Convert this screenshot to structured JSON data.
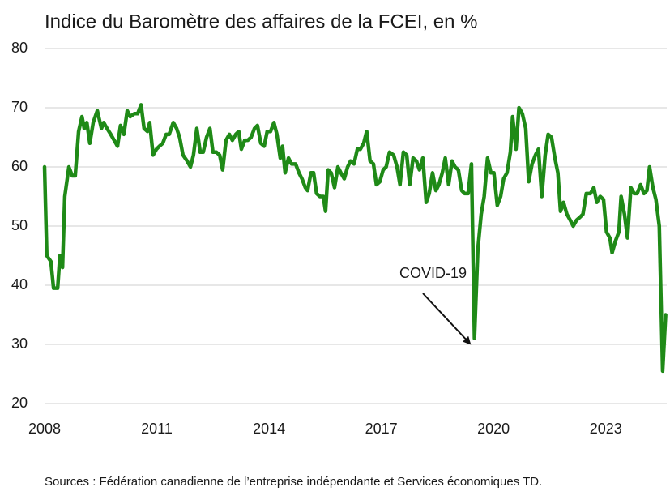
{
  "chart_data": {
    "type": "line",
    "title": "Indice du Baromètre des affaires de la FCEI, en %",
    "source": "Sources : Fédération canadienne de l’entreprise indépendante et Services économiques TD.",
    "annotation": "COVID-19",
    "x": [
      2008.0,
      2008.06,
      2008.17,
      2008.24,
      2008.35,
      2008.41,
      2008.48,
      2008.54,
      2008.65,
      2008.74,
      2008.82,
      2008.91,
      2009.0,
      2009.06,
      2009.13,
      2009.21,
      2009.3,
      2009.41,
      2009.52,
      2009.58,
      2009.67,
      2009.77,
      2009.86,
      2009.95,
      2010.03,
      2010.12,
      2010.21,
      2010.29,
      2010.4,
      2010.49,
      2010.58,
      2010.66,
      2010.75,
      2010.81,
      2010.9,
      2010.99,
      2011.07,
      2011.16,
      2011.25,
      2011.33,
      2011.44,
      2011.53,
      2011.61,
      2011.7,
      2011.81,
      2011.9,
      2011.98,
      2012.07,
      2012.16,
      2012.24,
      2012.33,
      2012.42,
      2012.5,
      2012.59,
      2012.68,
      2012.76,
      2012.85,
      2012.94,
      2013.02,
      2013.11,
      2013.19,
      2013.26,
      2013.35,
      2013.43,
      2013.52,
      2013.61,
      2013.69,
      2013.78,
      2013.87,
      2013.95,
      2014.04,
      2014.13,
      2014.21,
      2014.3,
      2014.36,
      2014.43,
      2014.52,
      2014.6,
      2014.71,
      2014.8,
      2014.88,
      2014.97,
      2015.03,
      2015.12,
      2015.19,
      2015.27,
      2015.36,
      2015.45,
      2015.51,
      2015.58,
      2015.66,
      2015.75,
      2015.84,
      2015.92,
      2016.01,
      2016.1,
      2016.18,
      2016.27,
      2016.36,
      2016.44,
      2016.53,
      2016.61,
      2016.7,
      2016.79,
      2016.87,
      2016.96,
      2017.05,
      2017.13,
      2017.22,
      2017.33,
      2017.42,
      2017.5,
      2017.59,
      2017.68,
      2017.76,
      2017.85,
      2017.94,
      2018.02,
      2018.11,
      2018.2,
      2018.28,
      2018.37,
      2018.46,
      2018.54,
      2018.63,
      2018.71,
      2018.8,
      2018.89,
      2018.97,
      2019.06,
      2019.15,
      2019.23,
      2019.32,
      2019.41,
      2019.49,
      2019.58,
      2019.67,
      2019.75,
      2019.84,
      2019.93,
      2020.01,
      2020.1,
      2020.19,
      2020.27,
      2020.36,
      2020.45,
      2020.51,
      2020.6,
      2020.68,
      2020.77,
      2020.86,
      2020.94,
      2021.03,
      2021.12,
      2021.2,
      2021.29,
      2021.38,
      2021.46,
      2021.55,
      2021.64,
      2021.72,
      2021.79,
      2021.87,
      2021.96,
      2022.05,
      2022.13,
      2022.22,
      2022.31,
      2022.39,
      2022.48,
      2022.59,
      2022.68,
      2022.76,
      2022.85,
      2022.94,
      2023.02,
      2023.11,
      2023.17,
      2023.26,
      2023.35,
      2023.41,
      2023.5,
      2023.58,
      2023.67,
      2023.76,
      2023.84,
      2023.93,
      2024.02,
      2024.1,
      2024.17,
      2024.26,
      2024.34,
      2024.43,
      2024.52,
      2024.6
    ],
    "series": [
      {
        "color": "#1f8a17",
        "values": [
          60,
          45,
          44,
          39.5,
          39.5,
          45,
          43,
          55,
          60,
          58.5,
          58.5,
          66,
          68.5,
          66.5,
          67.5,
          64,
          67.5,
          69.5,
          66.5,
          67.5,
          66.5,
          65.5,
          64.5,
          63.5,
          67,
          65.5,
          69.5,
          68.5,
          69,
          69,
          70.5,
          66.5,
          66,
          67.5,
          62,
          63,
          63.5,
          64,
          65.5,
          65.5,
          67.5,
          66.5,
          65,
          62,
          61,
          60,
          62,
          66.5,
          62.5,
          62.5,
          65,
          66.5,
          62.5,
          62.5,
          62,
          59.5,
          64.5,
          65.5,
          64.5,
          65.5,
          66,
          63,
          64.5,
          64.5,
          65,
          66.5,
          67,
          64,
          63.5,
          66,
          66,
          67.5,
          65.5,
          61.5,
          63.5,
          59,
          61.5,
          60.5,
          60.5,
          59,
          58,
          56.5,
          56,
          59,
          59,
          55.5,
          55,
          55,
          52.5,
          59.5,
          59,
          56.5,
          60,
          59,
          58,
          60,
          61,
          60.5,
          63,
          63,
          64,
          66,
          61,
          60.5,
          57,
          57.5,
          59.5,
          60,
          62.5,
          62,
          60,
          57,
          62.5,
          62,
          57,
          61.5,
          61,
          59.5,
          61.5,
          54,
          55.5,
          59,
          56,
          57,
          59,
          61.5,
          57,
          61,
          60,
          59.5,
          56,
          55.5,
          55.5,
          60.5,
          31,
          46,
          52,
          55,
          61.5,
          59,
          59,
          53.5,
          55,
          58,
          59,
          62.5,
          68.5,
          63,
          70,
          69,
          66.5,
          57.5,
          60.5,
          62,
          63,
          55,
          62,
          65.5,
          65,
          61.5,
          59,
          52.5,
          54,
          52,
          51,
          50,
          51,
          51.5,
          52,
          55.5,
          55.5,
          56.5,
          54,
          55,
          54.5,
          49,
          48,
          45.5,
          47.5,
          49,
          55,
          52,
          48,
          56.5,
          55.5,
          55.5,
          57,
          55.5,
          56,
          60,
          56.5,
          54.5,
          50,
          25.5,
          35
        ]
      }
    ],
    "xlim": [
      2008,
      2024.63
    ],
    "xticks": [
      2008,
      2011,
      2014,
      2017,
      2020,
      2023
    ],
    "ylim": [
      20,
      80
    ],
    "yticks": [
      20,
      30,
      40,
      50,
      60,
      70,
      80
    ],
    "grid": true
  }
}
